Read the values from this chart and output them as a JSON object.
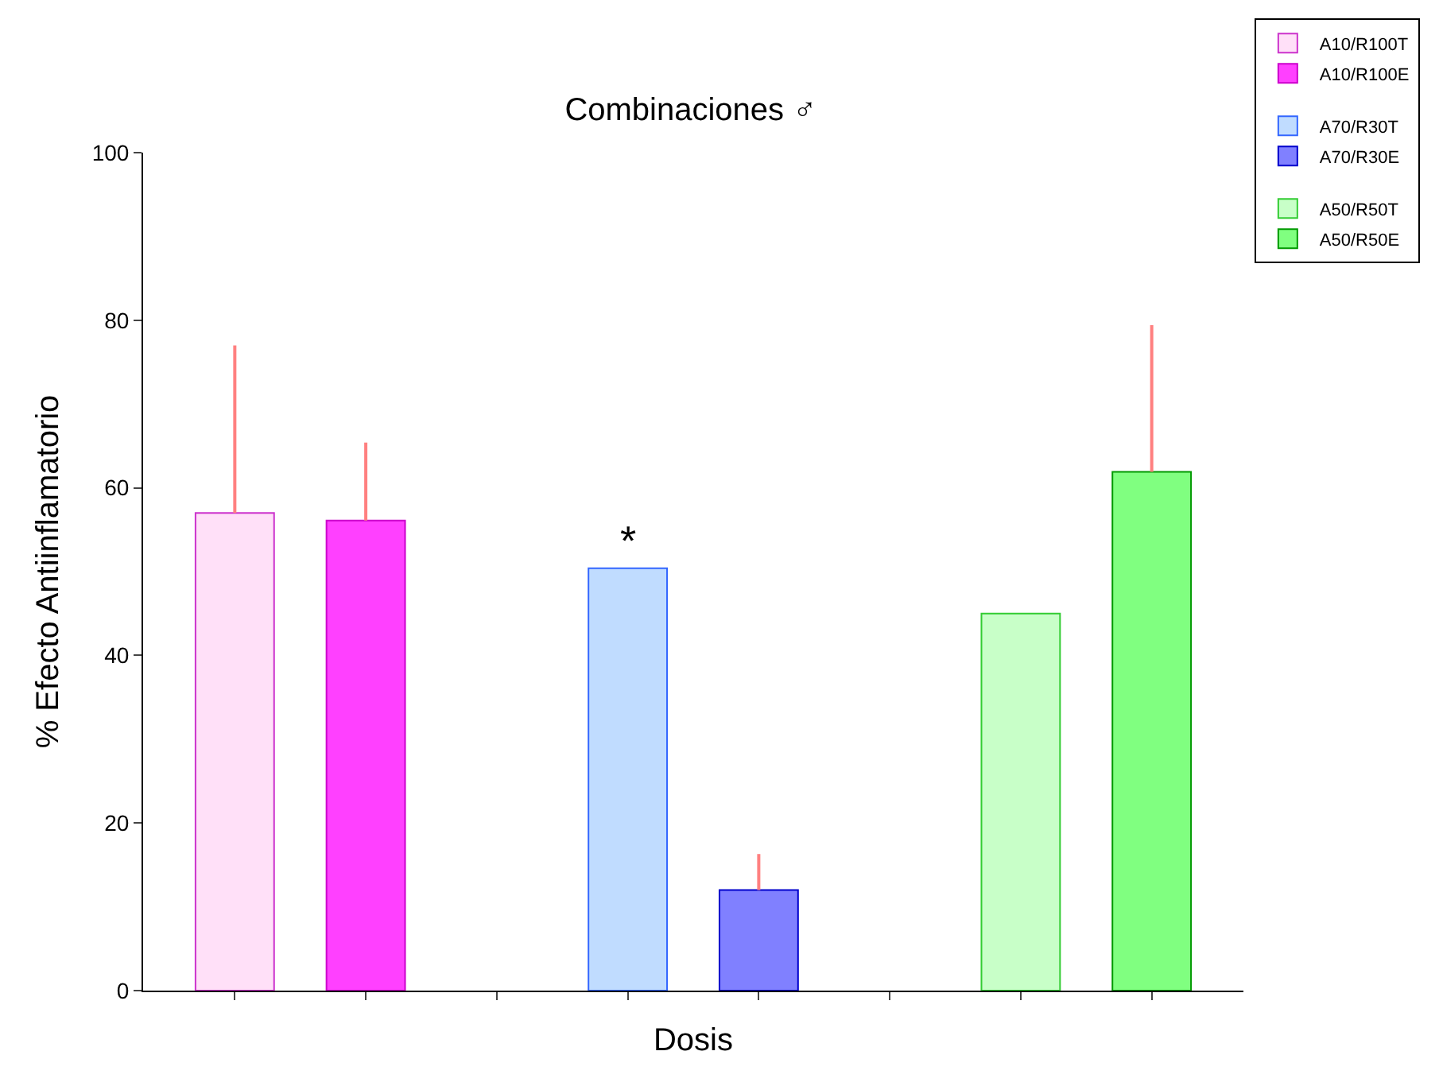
{
  "chart_data": {
    "type": "bar",
    "title": "Combinaciones ♂",
    "xlabel": "Dosis",
    "ylabel": "% Efecto Antiinflamatorio",
    "categories": [
      null,
      null,
      null,
      null,
      null,
      null,
      null,
      null
    ],
    "series": [
      {
        "name": "A10/R100T",
        "color": "#ffe0f8",
        "values": [
          57,
          null,
          null,
          null,
          null,
          null,
          null,
          null
        ],
        "errors": [
          [
            57,
            77
          ],
          null,
          null,
          null,
          null,
          null,
          null,
          null
        ]
      },
      {
        "name": "A10/R100E",
        "color": "#ff40ff",
        "values": [
          null,
          56.1,
          null,
          null,
          null,
          null,
          null,
          null
        ],
        "errors": [
          null,
          [
            56.1,
            65.4
          ],
          null,
          null,
          null,
          null,
          null,
          null
        ]
      },
      {
        "name": "A70/R30T",
        "color": "#c0dcff",
        "values": [
          null,
          null,
          null,
          50.4,
          null,
          null,
          null,
          null
        ]
      },
      {
        "name": "A70/R30E",
        "color": "#8080ff",
        "values": [
          null,
          null,
          null,
          null,
          12,
          null,
          null,
          null
        ],
        "errors": [
          null,
          null,
          null,
          null,
          [
            12,
            16.3
          ],
          null,
          null,
          null
        ]
      },
      {
        "name": "A50/R50T",
        "color": "#c8ffc8",
        "values": [
          null,
          null,
          null,
          null,
          null,
          null,
          45,
          null
        ]
      },
      {
        "name": "A50/R50E",
        "color": "#80ff80",
        "values": [
          null,
          null,
          null,
          null,
          null,
          null,
          null,
          61.9
        ],
        "errors": [
          null,
          null,
          null,
          null,
          null,
          null,
          null,
          [
            61.9,
            79.4
          ]
        ]
      }
    ],
    "annotations": [
      {
        "text": "*",
        "y": 50.4
      }
    ],
    "ylim": [
      0,
      100
    ],
    "yticks": [
      0,
      20,
      40,
      60,
      80,
      100
    ],
    "legend": "top right"
  }
}
